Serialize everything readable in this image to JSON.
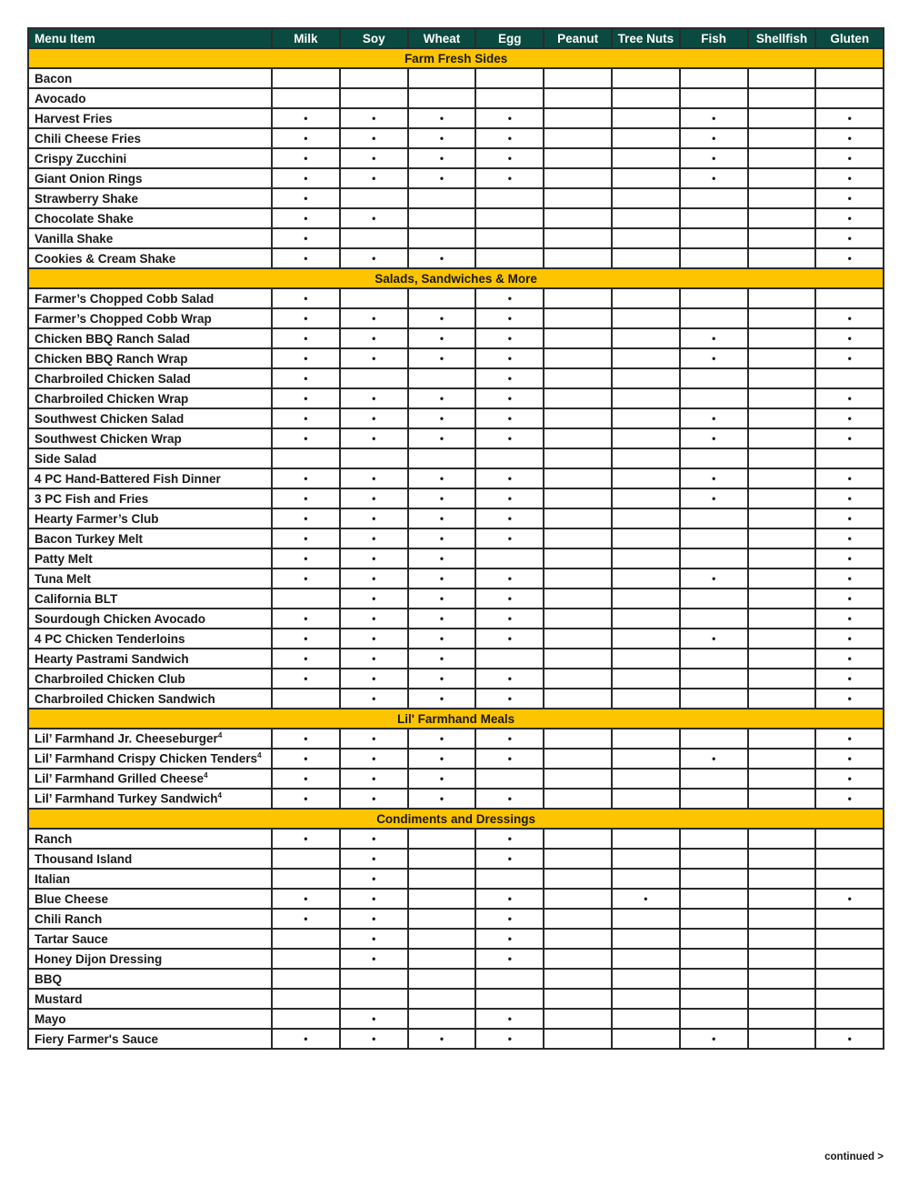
{
  "header": {
    "menu_item": "Menu Item",
    "allergens": [
      "Milk",
      "Soy",
      "Wheat",
      "Egg",
      "Peanut",
      "Tree Nuts",
      "Fish",
      "Shellfish",
      "Gluten"
    ]
  },
  "colors": {
    "header_bg": "#0b4a40",
    "section_bg": "#fdc400"
  },
  "marker": "•",
  "sections": [
    {
      "title": "Farm Fresh Sides",
      "items": [
        {
          "name": "Bacon",
          "allergens": "000000000"
        },
        {
          "name": "Avocado",
          "allergens": "000000000"
        },
        {
          "name": "Harvest Fries",
          "allergens": "111100101"
        },
        {
          "name": "Chili Cheese Fries",
          "allergens": "111100101"
        },
        {
          "name": "Crispy Zucchini",
          "allergens": "111100101"
        },
        {
          "name": "Giant Onion Rings",
          "allergens": "111100101"
        },
        {
          "name": "Strawberry Shake",
          "allergens": "100000001"
        },
        {
          "name": "Chocolate Shake",
          "allergens": "110000001"
        },
        {
          "name": "Vanilla Shake",
          "allergens": "100000001"
        },
        {
          "name": "Cookies & Cream Shake",
          "allergens": "111000001"
        }
      ]
    },
    {
      "title": "Salads, Sandwiches & More",
      "items": [
        {
          "name": "Farmer’s Chopped Cobb Salad",
          "allergens": "100100000"
        },
        {
          "name": "Farmer’s Chopped Cobb Wrap",
          "allergens": "111100001"
        },
        {
          "name": "Chicken BBQ Ranch Salad",
          "allergens": "111100101"
        },
        {
          "name": "Chicken BBQ Ranch Wrap",
          "allergens": "111100101"
        },
        {
          "name": "Charbroiled Chicken Salad",
          "allergens": "100100000"
        },
        {
          "name": "Charbroiled Chicken Wrap",
          "allergens": "111100001"
        },
        {
          "name": "Southwest Chicken Salad",
          "allergens": "111100101"
        },
        {
          "name": "Southwest Chicken Wrap",
          "allergens": "111100101"
        },
        {
          "name": "Side Salad",
          "allergens": "000000000"
        },
        {
          "name": "4 PC Hand-Battered Fish Dinner",
          "allergens": "111100101"
        },
        {
          "name": "3 PC Fish and Fries",
          "allergens": "111100101"
        },
        {
          "name": "Hearty Farmer’s Club",
          "allergens": "111100001"
        },
        {
          "name": "Bacon Turkey Melt",
          "allergens": "111100001"
        },
        {
          "name": "Patty Melt",
          "allergens": "111000001"
        },
        {
          "name": "Tuna Melt",
          "allergens": "111100101"
        },
        {
          "name": "California BLT",
          "allergens": "011100001"
        },
        {
          "name": "Sourdough Chicken Avocado",
          "allergens": "111100001"
        },
        {
          "name": "4 PC Chicken Tenderloins",
          "allergens": "111100101"
        },
        {
          "name": "Hearty Pastrami Sandwich",
          "allergens": "111000001"
        },
        {
          "name": "Charbroiled Chicken Club",
          "allergens": "111100001"
        },
        {
          "name": "Charbroiled Chicken Sandwich",
          "allergens": "011100001"
        }
      ]
    },
    {
      "title": "Lil' Farmhand Meals",
      "items": [
        {
          "name": "Lil’ Farmhand Jr. Cheeseburger",
          "sup": "4",
          "allergens": "111100001"
        },
        {
          "name": "Lil’ Farmhand Crispy Chicken Tenders",
          "sup": "4",
          "allergens": "111100101"
        },
        {
          "name": "Lil’ Farmhand Grilled Cheese",
          "sup": "4",
          "allergens": "111000001"
        },
        {
          "name": "Lil’ Farmhand Turkey Sandwich",
          "sup": "4",
          "allergens": "111100001"
        }
      ]
    },
    {
      "title": "Condiments and Dressings",
      "items": [
        {
          "name": "Ranch",
          "allergens": "110100000"
        },
        {
          "name": "Thousand Island",
          "allergens": "010100000"
        },
        {
          "name": "Italian",
          "allergens": "010000000"
        },
        {
          "name": "Blue Cheese",
          "allergens": "110101001"
        },
        {
          "name": "Chili Ranch",
          "allergens": "110100000"
        },
        {
          "name": "Tartar Sauce",
          "allergens": "010100000"
        },
        {
          "name": "Honey Dijon Dressing",
          "allergens": "010100000"
        },
        {
          "name": "BBQ",
          "allergens": "000000000"
        },
        {
          "name": "Mustard",
          "allergens": "000000000"
        },
        {
          "name": "Mayo",
          "allergens": "010100000"
        },
        {
          "name": "Fiery Farmer's Sauce",
          "allergens": "111100101"
        }
      ]
    }
  ],
  "footer": {
    "continued": "continued >"
  }
}
